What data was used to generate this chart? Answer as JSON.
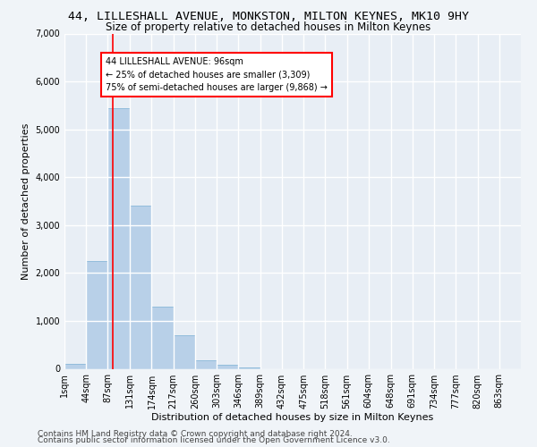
{
  "title1": "44, LILLESHALL AVENUE, MONKSTON, MILTON KEYNES, MK10 9HY",
  "title2": "Size of property relative to detached houses in Milton Keynes",
  "xlabel": "Distribution of detached houses by size in Milton Keynes",
  "ylabel": "Number of detached properties",
  "footer1": "Contains HM Land Registry data © Crown copyright and database right 2024.",
  "footer2": "Contains public sector information licensed under the Open Government Licence v3.0.",
  "annotation_line1": "44 LILLESHALL AVENUE: 96sqm",
  "annotation_line2": "← 25% of detached houses are smaller (3,309)",
  "annotation_line3": "75% of semi-detached houses are larger (9,868) →",
  "bar_color": "#b8d0e8",
  "bar_edge_color": "#7aafd4",
  "property_size_sqm": 96,
  "red_line_x": 96,
  "categories": [
    "1sqm",
    "44sqm",
    "87sqm",
    "131sqm",
    "174sqm",
    "217sqm",
    "260sqm",
    "303sqm",
    "346sqm",
    "389sqm",
    "432sqm",
    "475sqm",
    "518sqm",
    "561sqm",
    "604sqm",
    "648sqm",
    "691sqm",
    "734sqm",
    "777sqm",
    "820sqm",
    "863sqm"
  ],
  "bin_edges": [
    1,
    44,
    87,
    131,
    174,
    217,
    260,
    303,
    346,
    389,
    432,
    475,
    518,
    561,
    604,
    648,
    691,
    734,
    777,
    820,
    863
  ],
  "bin_width": 43,
  "values": [
    100,
    2250,
    5450,
    3400,
    1300,
    700,
    175,
    80,
    30,
    0,
    0,
    0,
    0,
    0,
    0,
    0,
    0,
    0,
    0,
    0,
    0
  ],
  "ylim": [
    0,
    7000
  ],
  "yticks": [
    0,
    1000,
    2000,
    3000,
    4000,
    5000,
    6000,
    7000
  ],
  "background_color": "#e8eef5",
  "grid_color": "#ffffff",
  "fig_bg_color": "#f0f4f8",
  "title1_fontsize": 9.5,
  "title2_fontsize": 8.5,
  "axis_label_fontsize": 8,
  "tick_fontsize": 7,
  "footer_fontsize": 6.5,
  "annotation_fontsize": 7
}
